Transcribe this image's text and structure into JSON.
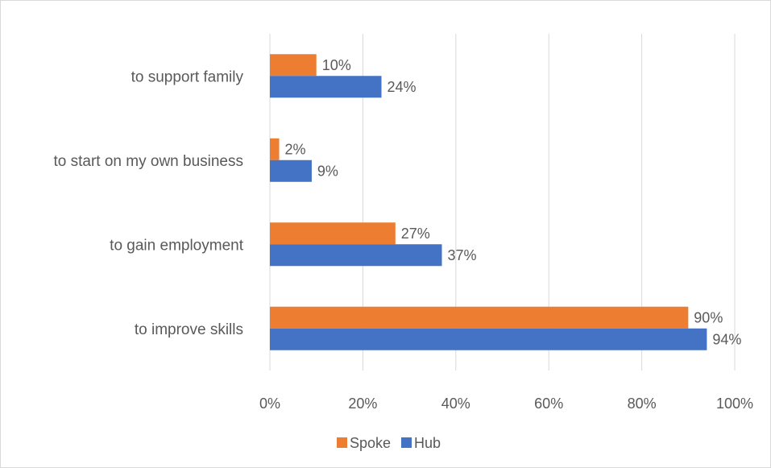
{
  "chart_data": {
    "type": "bar",
    "orientation": "horizontal",
    "title": "",
    "xlabel": "",
    "ylabel": "",
    "categories": [
      "to improve skills",
      "to gain employment",
      "to start on my own business",
      "to support family"
    ],
    "series": [
      {
        "name": "Spoke",
        "color": "#ED7D31",
        "values": [
          90,
          27,
          2,
          10
        ],
        "labels": [
          "90%",
          "27%",
          "2%",
          "10%"
        ]
      },
      {
        "name": "Hub",
        "color": "#4472C4",
        "values": [
          94,
          37,
          9,
          24
        ],
        "labels": [
          "94%",
          "37%",
          "9%",
          "24%"
        ]
      }
    ],
    "xlim": [
      0,
      100
    ],
    "ticks": [
      0,
      20,
      40,
      60,
      80,
      100
    ],
    "tick_labels": [
      "0%",
      "20%",
      "40%",
      "60%",
      "80%",
      "100%"
    ],
    "grid": true,
    "legend_position": "bottom",
    "legend": [
      "Spoke",
      "Hub"
    ]
  }
}
